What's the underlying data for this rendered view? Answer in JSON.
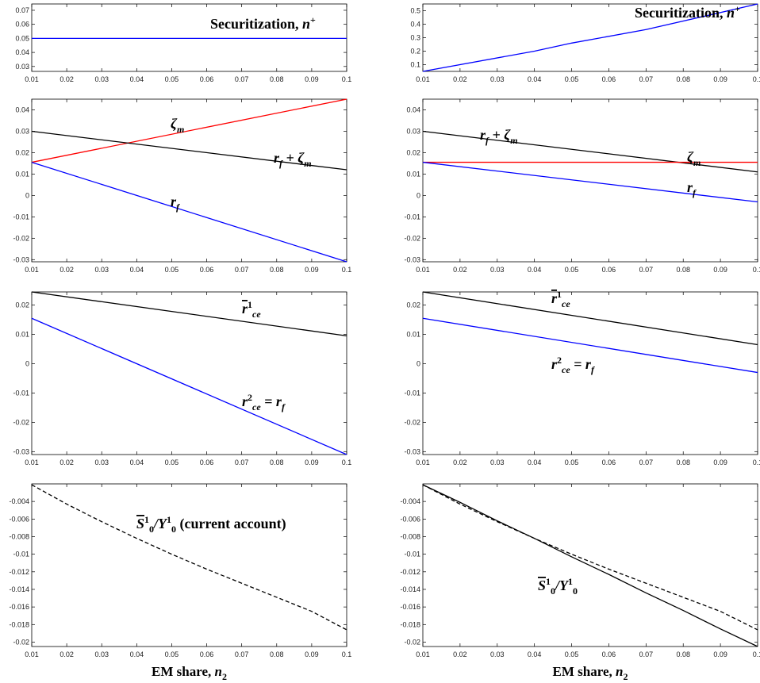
{
  "chart_data": [
    {
      "type": "line",
      "x": [
        0.01,
        0.1
      ],
      "series": [
        {
          "color": "#0000ff",
          "values": [
            0.05,
            0.05
          ]
        }
      ],
      "xlim": [
        0.01,
        0.1
      ],
      "ylim": [
        0.0265,
        0.0745
      ],
      "xticks": [
        0.01,
        0.02,
        0.03,
        0.04,
        0.05,
        0.06,
        0.07,
        0.08,
        0.09,
        0.1
      ],
      "yticks": [
        0.03,
        0.04,
        0.05,
        0.06,
        0.07
      ],
      "annotations": [
        [
          {
            "text": "Securitization, "
          },
          {
            "text": "n",
            "italic": true
          },
          {
            "text": "+",
            "pos": "sup"
          }
        ]
      ]
    },
    {
      "type": "line",
      "x": [
        0.01,
        0.04,
        0.05,
        0.07,
        0.1
      ],
      "series": [
        {
          "color": "#0000ff",
          "values": [
            0.05,
            0.2,
            0.26,
            0.36,
            0.55
          ]
        }
      ],
      "xlim": [
        0.01,
        0.1
      ],
      "ylim": [
        0.05,
        0.55
      ],
      "xticks": [
        0.01,
        0.02,
        0.03,
        0.04,
        0.05,
        0.06,
        0.07,
        0.08,
        0.09,
        0.1
      ],
      "yticks": [
        0.1,
        0.2,
        0.3,
        0.4,
        0.5
      ],
      "annotations": [
        [
          {
            "text": "Securitization, "
          },
          {
            "text": "n",
            "italic": true
          },
          {
            "text": "+",
            "pos": "sup"
          }
        ]
      ]
    },
    {
      "type": "line",
      "x": [
        0.01,
        0.1
      ],
      "series": [
        {
          "color": "#ff0000",
          "values": [
            0.0155,
            0.045
          ]
        },
        {
          "color": "#000000",
          "values": [
            0.03,
            0.012
          ]
        },
        {
          "color": "#0000ff",
          "values": [
            0.0155,
            -0.031
          ]
        }
      ],
      "xlim": [
        0.01,
        0.1
      ],
      "ylim": [
        -0.031,
        0.045
      ],
      "xticks": [
        0.01,
        0.02,
        0.03,
        0.04,
        0.05,
        0.06,
        0.07,
        0.08,
        0.09,
        0.1
      ],
      "yticks": [
        -0.03,
        -0.02,
        -0.01,
        0,
        0.01,
        0.02,
        0.03,
        0.04
      ],
      "annotations": [
        [
          {
            "text": "ζ",
            "italic": true
          },
          {
            "text": "m",
            "pos": "sub",
            "italic": true
          }
        ],
        [
          {
            "text": "r",
            "italic": true
          },
          {
            "text": "f",
            "pos": "sub",
            "italic": true
          },
          {
            "text": " + ζ",
            "italic": true
          },
          {
            "text": "m",
            "pos": "sub",
            "italic": true
          }
        ],
        [
          {
            "text": "r",
            "italic": true
          },
          {
            "text": "f",
            "pos": "sub",
            "italic": true
          }
        ]
      ]
    },
    {
      "type": "line",
      "x": [
        0.01,
        0.1
      ],
      "series": [
        {
          "color": "#000000",
          "values": [
            0.03,
            0.011
          ]
        },
        {
          "color": "#ff0000",
          "values": [
            0.0155,
            0.0155
          ]
        },
        {
          "color": "#0000ff",
          "values": [
            0.0155,
            -0.003
          ]
        }
      ],
      "xlim": [
        0.01,
        0.1
      ],
      "ylim": [
        -0.031,
        0.045
      ],
      "xticks": [
        0.01,
        0.02,
        0.03,
        0.04,
        0.05,
        0.06,
        0.07,
        0.08,
        0.09,
        0.1
      ],
      "yticks": [
        -0.03,
        -0.02,
        -0.01,
        0,
        0.01,
        0.02,
        0.03,
        0.04
      ],
      "annotations": [
        [
          {
            "text": "r",
            "italic": true
          },
          {
            "text": "f",
            "pos": "sub",
            "italic": true
          },
          {
            "text": " + ζ",
            "italic": true
          },
          {
            "text": "m",
            "pos": "sub",
            "italic": true
          }
        ],
        [
          {
            "text": "ζ",
            "italic": true
          },
          {
            "text": "m",
            "pos": "sub",
            "italic": true
          }
        ],
        [
          {
            "text": "r",
            "italic": true
          },
          {
            "text": "f",
            "pos": "sub",
            "italic": true
          }
        ]
      ]
    },
    {
      "type": "line",
      "x": [
        0.01,
        0.1
      ],
      "series": [
        {
          "color": "#000000",
          "values": [
            0.0245,
            0.0095
          ]
        },
        {
          "color": "#0000ff",
          "values": [
            0.0155,
            -0.031
          ]
        }
      ],
      "xlim": [
        0.01,
        0.1
      ],
      "ylim": [
        -0.031,
        0.0245
      ],
      "xticks": [
        0.01,
        0.02,
        0.03,
        0.04,
        0.05,
        0.06,
        0.07,
        0.08,
        0.09,
        0.1
      ],
      "yticks": [
        -0.03,
        -0.02,
        -0.01,
        0,
        0.01,
        0.02
      ],
      "annotations": [
        [
          {
            "text": "r",
            "italic": true,
            "overline": true
          },
          {
            "text": "1",
            "pos": "sup"
          },
          {
            "text": "ce",
            "pos": "sub",
            "italic": true
          }
        ],
        [
          {
            "text": "r",
            "italic": true
          },
          {
            "text": "2",
            "pos": "sup"
          },
          {
            "text": "ce",
            "pos": "sub",
            "italic": true
          },
          {
            "text": " = r",
            "italic": true
          },
          {
            "text": "f",
            "pos": "sub",
            "italic": true
          }
        ]
      ]
    },
    {
      "type": "line",
      "x": [
        0.01,
        0.1
      ],
      "series": [
        {
          "color": "#000000",
          "values": [
            0.0245,
            0.0065
          ]
        },
        {
          "color": "#0000ff",
          "values": [
            0.0155,
            -0.003
          ]
        }
      ],
      "xlim": [
        0.01,
        0.1
      ],
      "ylim": [
        -0.031,
        0.0245
      ],
      "xticks": [
        0.01,
        0.02,
        0.03,
        0.04,
        0.05,
        0.06,
        0.07,
        0.08,
        0.09,
        0.1
      ],
      "yticks": [
        -0.03,
        -0.02,
        -0.01,
        0,
        0.01,
        0.02
      ],
      "annotations": [
        [
          {
            "text": "r",
            "italic": true,
            "overline": true
          },
          {
            "text": "1",
            "pos": "sup"
          },
          {
            "text": "ce",
            "pos": "sub",
            "italic": true
          }
        ],
        [
          {
            "text": "r",
            "italic": true
          },
          {
            "text": "2",
            "pos": "sup"
          },
          {
            "text": "ce",
            "pos": "sub",
            "italic": true
          },
          {
            "text": " = r",
            "italic": true
          },
          {
            "text": "f",
            "pos": "sub",
            "italic": true
          }
        ]
      ]
    },
    {
      "type": "line",
      "x": [
        0.01,
        0.02,
        0.03,
        0.04,
        0.05,
        0.06,
        0.07,
        0.08,
        0.09,
        0.1
      ],
      "series": [
        {
          "color": "#000000",
          "linestyle": "dashed",
          "values": [
            -0.0021,
            -0.0043,
            -0.0063,
            -0.0082,
            -0.01,
            -0.0117,
            -0.0133,
            -0.0149,
            -0.0165,
            -0.0186
          ]
        }
      ],
      "xlim": [
        0.01,
        0.1
      ],
      "ylim": [
        -0.0205,
        -0.002
      ],
      "xticks": [
        0.01,
        0.02,
        0.03,
        0.04,
        0.05,
        0.06,
        0.07,
        0.08,
        0.09,
        0.1
      ],
      "yticks": [
        -0.02,
        -0.018,
        -0.016,
        -0.014,
        -0.012,
        -0.01,
        -0.008,
        -0.006,
        -0.004
      ],
      "annotations": [
        [
          {
            "text": "S",
            "italic": true,
            "overline": true
          },
          {
            "text": "1",
            "pos": "sup"
          },
          {
            "text": "0",
            "pos": "sub"
          },
          {
            "text": "/Y",
            "italic": true
          },
          {
            "text": "1",
            "pos": "sup"
          },
          {
            "text": "0",
            "pos": "sub"
          },
          {
            "text": " (current account)"
          }
        ]
      ],
      "xlabel": [
        {
          "text": "EM share, "
        },
        {
          "text": "n",
          "italic": true
        },
        {
          "text": "2",
          "pos": "sub"
        }
      ]
    },
    {
      "type": "line",
      "x": [
        0.01,
        0.02,
        0.03,
        0.04,
        0.05,
        0.06,
        0.07,
        0.08,
        0.09,
        0.1
      ],
      "series": [
        {
          "color": "#000000",
          "linestyle": "dashed",
          "values": [
            -0.0021,
            -0.0043,
            -0.0063,
            -0.0082,
            -0.01,
            -0.0117,
            -0.0133,
            -0.0149,
            -0.0165,
            -0.0186
          ]
        },
        {
          "color": "#000000",
          "values": [
            -0.0021,
            -0.0041,
            -0.0062,
            -0.0082,
            -0.0103,
            -0.0123,
            -0.0144,
            -0.0164,
            -0.0185,
            -0.0205
          ]
        }
      ],
      "xlim": [
        0.01,
        0.1
      ],
      "ylim": [
        -0.0205,
        -0.002
      ],
      "xticks": [
        0.01,
        0.02,
        0.03,
        0.04,
        0.05,
        0.06,
        0.07,
        0.08,
        0.09,
        0.1
      ],
      "yticks": [
        -0.02,
        -0.018,
        -0.016,
        -0.014,
        -0.012,
        -0.01,
        -0.008,
        -0.006,
        -0.004
      ],
      "annotations": [
        [
          {
            "text": "S",
            "italic": true,
            "overline": true
          },
          {
            "text": "1",
            "pos": "sup"
          },
          {
            "text": "0",
            "pos": "sub"
          },
          {
            "text": "/Y",
            "italic": true
          },
          {
            "text": "1",
            "pos": "sup"
          },
          {
            "text": "0",
            "pos": "sub"
          }
        ]
      ],
      "xlabel": [
        {
          "text": "EM share, "
        },
        {
          "text": "n",
          "italic": true
        },
        {
          "text": "2",
          "pos": "sub"
        }
      ]
    }
  ]
}
